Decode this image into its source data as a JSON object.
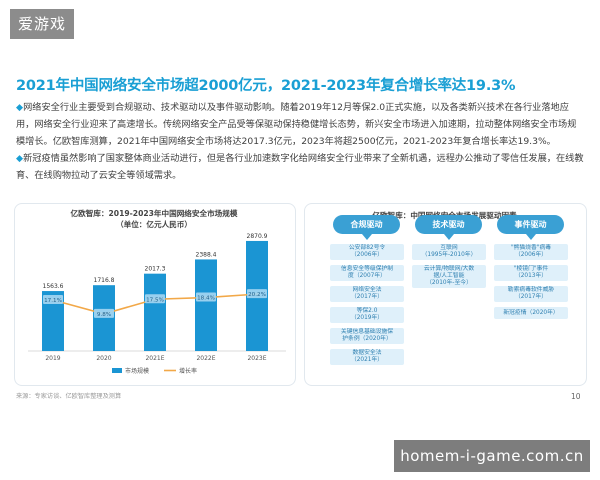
{
  "brand": "爱游戏",
  "title": "2021年中国网络安全市场超2000亿元，2021-2023年复合增长率达19.3%",
  "paragraphs": [
    {
      "bullet": "◆",
      "text": "网络安全行业主要受到合规驱动、技术驱动以及事件驱动影响。随着2019年12月等保2.0正式实施，以及各类新兴技术在各行业落地应用，网络安全行业迎来了高速增长。传统网络安全产品受等保驱动保持稳健增长态势，新兴安全市场进入加速期，拉动整体网络安全市场规模增长。亿欧智库测算，2021年中国网络安全市场将达2017.3亿元，2023年将超2500亿元，2021-2023年复合增长率达19.3%。"
    },
    {
      "bullet": "◆",
      "text": "新冠疫情虽然影响了国家整体商业活动进行，但是各行业加速数字化给网络安全行业带来了全新机遇，远程办公推动了零信任发展，在线教育、在线购物拉动了云安全等领域需求。"
    }
  ],
  "left_chart": {
    "title_line1": "亿欧智库：2019-2023年中国网络安全市场规模",
    "title_line2": "（单位：亿元人民币）"
  },
  "chart_data": {
    "type": "bar",
    "categories": [
      "2019",
      "2020",
      "2021E",
      "2022E",
      "2023E"
    ],
    "series": [
      {
        "name": "市场规模",
        "type": "bar",
        "values": [
          1563.6,
          1716.8,
          2017.3,
          2388.4,
          2870.9
        ]
      },
      {
        "name": "增长率",
        "type": "line",
        "values": [
          17.1,
          9.8,
          17.5,
          18.4,
          20.2
        ],
        "unit": "%"
      }
    ],
    "bar_labels": [
      "1563.6",
      "1716.8",
      "2017.3",
      "2388.4",
      "2870.9"
    ],
    "line_labels": [
      "17.1%",
      "9.8%",
      "17.5%",
      "18.4%",
      "20.2%"
    ],
    "ylim": [
      0,
      3000
    ],
    "legend_position": "bottom",
    "colors": {
      "bar": "#1b95d3",
      "line": "#f2a848",
      "label_box": "#9fd3f0"
    }
  },
  "right_chart": {
    "title": "亿欧智库：中国网络安全市场发展驱动因素",
    "columns": [
      {
        "head": "合规驱动",
        "items": [
          "公安部82号令\n（2006年）",
          "信息安全等级保护制\n度（2007年）",
          "网络安全法\n（2017年）",
          "等保2.0\n（2019年）",
          "关键信息基础设施保\n护条例（2020年）",
          "数据安全法\n（2021年）"
        ]
      },
      {
        "head": "技术驱动",
        "items": [
          "互联网\n（1995年-2010年）",
          "云计算/物联网/大数\n据/人工智能\n（2010年-至今）"
        ]
      },
      {
        "head": "事件驱动",
        "items": [
          "\"熊猫烧香\"病毒\n（2006年）",
          "\"棱镜门\"事件\n（2013年）",
          "勒索病毒软件威胁\n（2017年）",
          "新冠疫情（2020年）"
        ]
      }
    ]
  },
  "footer": {
    "source": "来源：专家访谈、亿欧智库整理及测算",
    "page": "10"
  },
  "watermark": "homem-i-game.com.cn"
}
